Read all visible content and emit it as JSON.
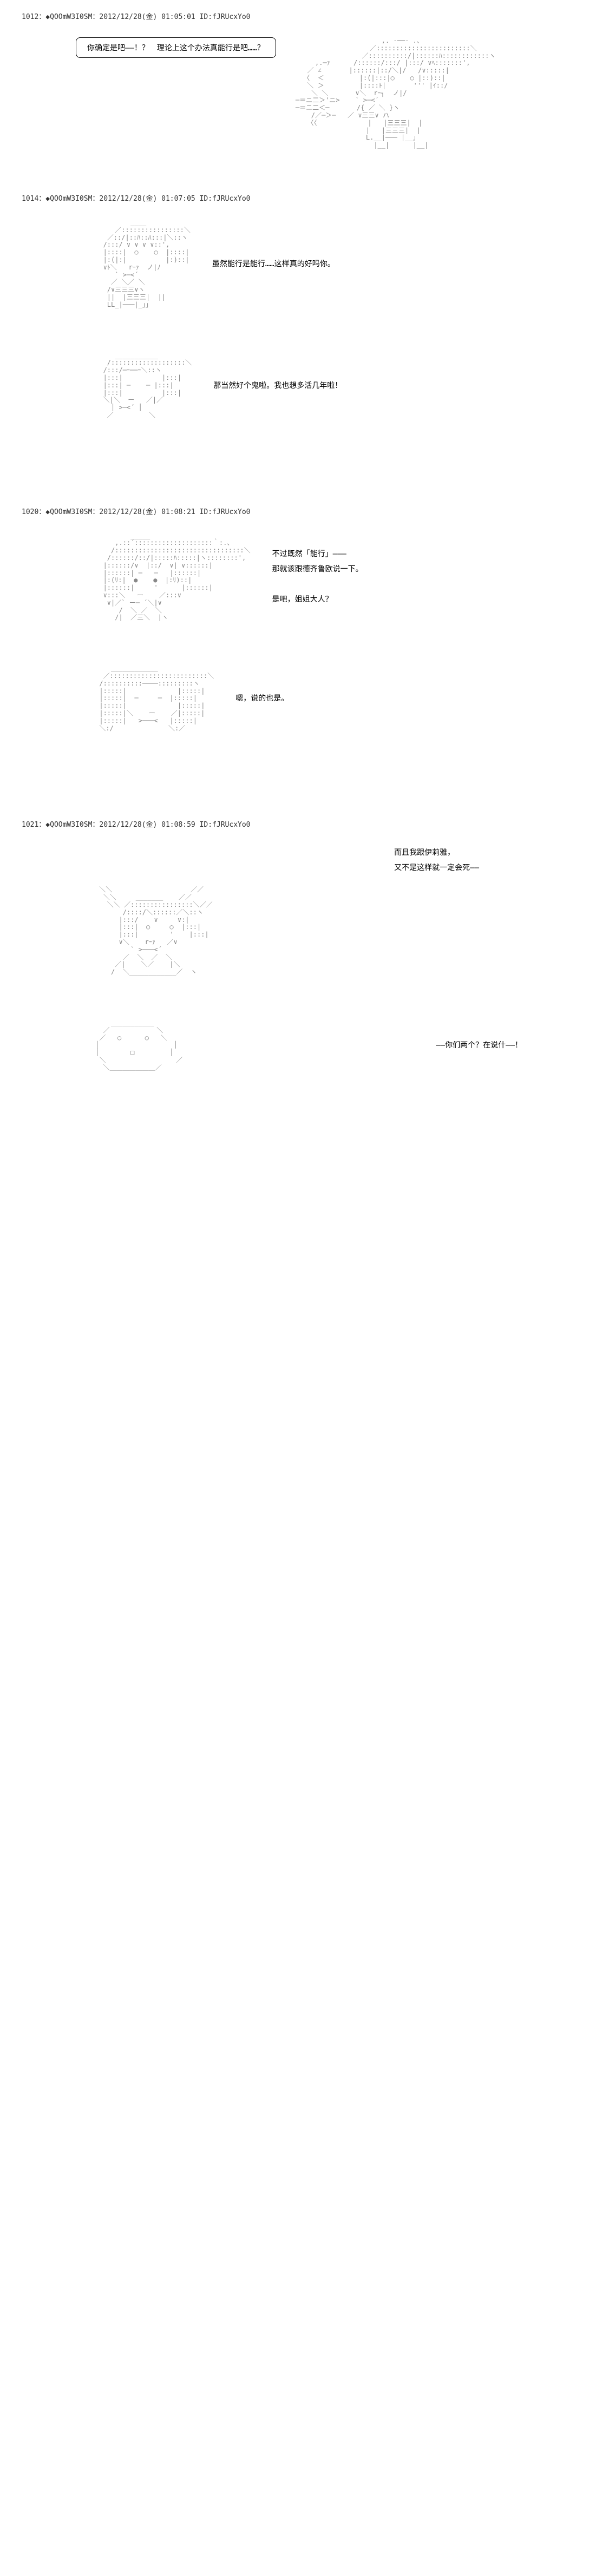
{
  "posts": [
    {
      "id": "1012",
      "trip": "◆QOOmW3I0SM",
      "date": "2012/12/28(金) 01:05:01",
      "uid": "ID:fJRUcxYo0",
      "bubble": "你确定是吧——！？　理论上这个办法真能行是吧……？",
      "aa": [
        "                           ,. -──- .、",
        "                        ／::::::::::::::::::::::::＼",
        "                      ／::::::::::/|::::::ﾊ::::::::::::ヽ",
        "          ,.─ｧ      /::::::/:::/ |:::/ ∨ﾍ:::::::',",
        "        ／ ∠       |::::::|::/＼|/   /∨:::::|",
        "       〈  ＜         |:(|:::|○    ○ |::)::|",
        "        ＼ ＞         |::::ﾄ|       ''' |ｲ::/",
        "         ＼ ＼       ∨＼  rｰ┐  ノ|/",
        "     ─＝ニ二＞'ニ>    ` >─<´",
        "     ─＝ニ二＜─       /{ ／ ＼ }ヽ",
        "         /／─＞─   ／ ∨三三∨ ハ",
        "        〈〈             |   |三三三|  |",
        "                       |   |三三三|  |",
        "                       L.__|─── |__」",
        "                         |__|      |__|"
      ]
    },
    {
      "id": "1014",
      "trip": "◆QOOmW3I0SM",
      "date": "2012/12/28(金) 01:07:05",
      "uid": "ID:fJRUcxYo0",
      "panels": [
        {
          "aa": [
            "              ____",
            "          ／::::::::::::::::＼",
            "        ／::/|::ﾊ::ﾊ:::|＼::ヽ",
            "       /:::/ ∨ ∨ ∨ ∨::',",
            "       |::::|  ○    ○  |::::|",
            "       |:(|:|          |:)::|",
            "       ∨ﾄ＼   rｰｧ  ノ|ﾉ",
            "          ` >─<´",
            "         ／ ＼／ ＼",
            "        /∨三三三∨ヽ",
            "        ||  |三三三|  ||",
            "        LL_|───|_｣｣"
          ],
          "text": "虽然能行是能行……这样真的好吗你。"
        },
        {
          "aa": [
            "          ___________",
            "        /:::::::::::::::::::＼",
            "       /:::/─ｰ──ｰ＼::ヽ",
            "       |:::|          |:::|",
            "       |:::| ─    ─ |:::|",
            "       |:::|          |:::|",
            "       ＼|＼  ー   ／|／",
            "         │ >─<´ │",
            "        ／         ＼"
          ],
          "text": "那当然好个鬼啦。我也想多活几年啦！"
        }
      ]
    },
    {
      "id": "1020",
      "trip": "◆QOOmW3I0SM",
      "date": "2012/12/28(金) 01:08:21",
      "uid": "ID:fJRUcxYo0",
      "panels": [
        {
          "aa": [
            "              _____",
            "          ,.::´::::::::::::::::::::｀:.、",
            "         /:::::::::::::::::::::::::::::::::＼",
            "        /::::::/::/|:::::ﾊ:::::|ヽ::::::::',",
            "       |::::::/∨  |::/  ∨| ∨::::::|",
            "       |::::::| ─   ─   |::::::|",
            "       |:(ﾘ:|  ●    ●  |:ﾘ)::|",
            "       |::::::|     '      |::::::|",
            "       ∨:::＼   ー    ／:::∨",
            "        ∨|／` ー─ ´＼|∨",
            "           /  ＼ ／  ＼",
            "          /|  ／三＼  |ヽ"
          ],
          "text": "不过既然「能行」———\n那就该跟德齐鲁欧说一下。\n\n是吧，姐姐大人？"
        },
        {
          "aa": [
            "         ____________",
            "       ／:::::::::::::::::::::::::＼",
            "      /::::::::::────:::::::::ヽ",
            "      |:::::|             |:::::|",
            "      |:::::|  ─     ─  |:::::|",
            "      |:::::|             |:::::|",
            "      |:::::|＼    ー    ／|:::::|",
            "      |:::::|   >───<   |:::::|",
            "      ＼:/              ＼:／"
          ],
          "text": "嗯，说的也是。"
        }
      ]
    },
    {
      "id": "1021",
      "trip": "◆QOOmW3I0SM",
      "date": "2012/12/28(金) 01:08:59",
      "uid": "ID:fJRUcxYo0",
      "panels": [
        {
          "aa": [
            "      ＼＼                    ／／",
            "       ＼＼     _______    ／／",
            "        ＼＼ ／::::::::::::::::＼／／",
            "            /::::/＼::::::／＼::ヽ",
            "           |:::/    ∨     ∨:|",
            "           |:::|  ○     ○  |:::|",
            "           |:::|        '    |:::|",
            "           ∨＼    rｰｧ   ／∨",
            "              ` >───<´",
            "            ／  ＼  ／  ＼",
            "          ／|    ＼／    |＼",
            "         /  ＼____________／  ヽ"
          ],
          "text": "而且我跟伊莉雅，\n又不是这样就一定会死——",
          "text_top": true
        },
        {
          "aa": [
            "         ___________",
            "       ／            ＼",
            "      ／   ○      ○   ＼",
            "     │                   │",
            "     │        □         │",
            "      ＼                  ／",
            "       ＼＿＿＿＿＿＿＿／"
          ],
          "text": "——你们两个？在说什——！",
          "right": true
        }
      ]
    }
  ]
}
